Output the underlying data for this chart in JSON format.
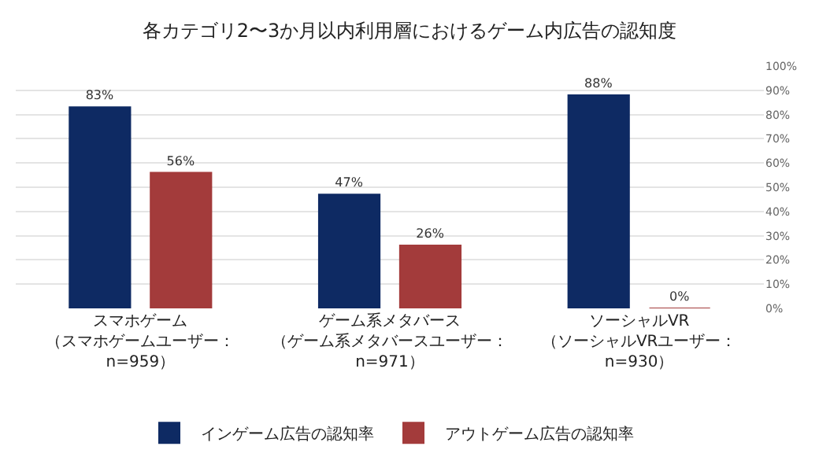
{
  "chart_data": {
    "type": "bar",
    "title": "各カテゴリ2〜3か月以内利用層におけるゲーム内広告の認知度",
    "categories": [
      "スマホゲーム（スマホゲームユーザー：n=959）",
      "ゲーム系メタバース（ゲーム系メタバースユーザー：n=971）",
      "ソーシャルVR（ソーシャルVRユーザー：n=930）"
    ],
    "series": [
      {
        "name": "インゲーム広告の認知率",
        "color": "#0e2a63",
        "values": [
          83,
          47,
          88
        ],
        "value_labels": [
          "83%",
          "47%",
          "88%"
        ]
      },
      {
        "name": "アウトゲーム広告の認知率",
        "color": "#a33b3b",
        "values": [
          56,
          26,
          0
        ],
        "value_labels": [
          "56%",
          "26%",
          "0%"
        ]
      }
    ],
    "ylim": [
      0,
      100
    ],
    "yticks": [
      {
        "value": 0,
        "label": "0%"
      },
      {
        "value": 10,
        "label": "10%"
      },
      {
        "value": 20,
        "label": "20%"
      },
      {
        "value": 30,
        "label": "30%"
      },
      {
        "value": 40,
        "label": "40%"
      },
      {
        "value": 50,
        "label": "50%"
      },
      {
        "value": 60,
        "label": "60%"
      },
      {
        "value": 70,
        "label": "70%"
      },
      {
        "value": 80,
        "label": "80%"
      },
      {
        "value": 90,
        "label": "90%"
      },
      {
        "value": 100,
        "label": "100%"
      }
    ],
    "grid": "y",
    "legend": "bottom"
  }
}
